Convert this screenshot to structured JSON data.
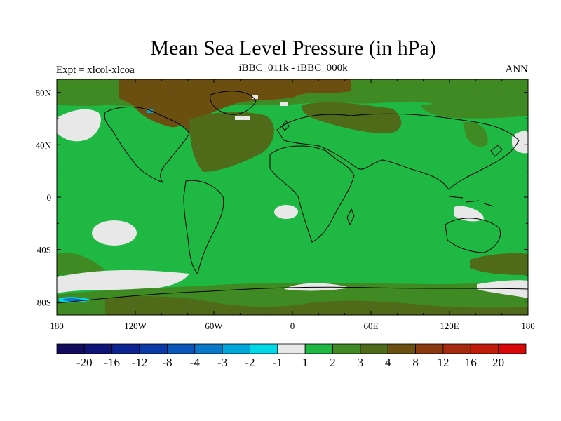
{
  "title": "Mean Sea Level Pressure (in hPa)",
  "left_subtitle": "Expt = xlcol-xlcoa",
  "center_subtitle": "iBBC_011k - iBBC_000k",
  "right_subtitle": "ANN",
  "chart_data": {
    "type": "heatmap",
    "projection": "cylindrical-equidistant",
    "variable": "Mean Sea Level Pressure difference (hPa)",
    "lon_ticks": [
      "180",
      "120W",
      "60W",
      "0",
      "60E",
      "120E",
      "180"
    ],
    "lon_values": [
      -180,
      -120,
      -60,
      0,
      60,
      120,
      180
    ],
    "lat_ticks": [
      "80N",
      "40N",
      "0",
      "40S",
      "80S"
    ],
    "lat_values": [
      80,
      40,
      0,
      -40,
      -80
    ],
    "lon_range": [
      -180,
      180
    ],
    "lat_range": [
      -90,
      90
    ],
    "colorbar": {
      "levels": [
        "-20",
        "-16",
        "-12",
        "-8",
        "-4",
        "-3",
        "-2",
        "-1",
        "1",
        "2",
        "3",
        "4",
        "8",
        "12",
        "16",
        "20"
      ],
      "colors": [
        "#120a5c",
        "#0e1477",
        "#0b2290",
        "#0a3aa6",
        "#0a56b8",
        "#0a78c8",
        "#00a6d8",
        "#00d8e8",
        "#e8e8e8",
        "#1fb843",
        "#3f8a22",
        "#4f6a18",
        "#6a4f10",
        "#8a3a10",
        "#a52a0e",
        "#c01a0a",
        "#d80808"
      ]
    },
    "dominant_range": "1 to 2 hPa over most of globe"
  }
}
